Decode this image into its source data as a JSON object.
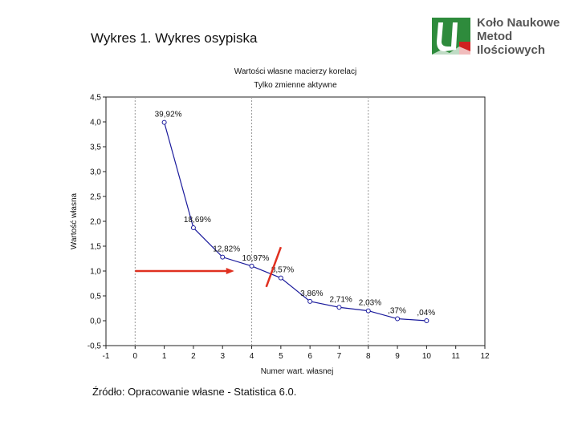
{
  "slide": {
    "title": "Wykres 1. Wykres osypiska",
    "source": "Źródło: Opracowanie własne - Statistica 6.0."
  },
  "logo": {
    "line1": "Koło Naukowe",
    "line2": "Metod",
    "line3": "Ilościowych",
    "color": "#2e8b3c"
  },
  "chart_data": {
    "type": "line",
    "title": "Wartości własne macierzy korelacj",
    "subtitle": "Tylko zmienne aktywne",
    "xlabel": "Numer wart. własnej",
    "ylabel": "Wartość własna",
    "xlim": [
      -1,
      12
    ],
    "ylim": [
      -0.5,
      4.5
    ],
    "x_ticks": [
      "-1",
      "0",
      "1",
      "2",
      "3",
      "4",
      "5",
      "6",
      "7",
      "8",
      "9",
      "10",
      "11",
      "12"
    ],
    "y_ticks": [
      "-0,5",
      "0,0",
      "0,5",
      "1,0",
      "1,5",
      "2,0",
      "2,5",
      "3,0",
      "3,5",
      "4,0",
      "4,5"
    ],
    "series": [
      {
        "x": [
          1,
          2,
          3,
          4,
          5,
          6,
          7,
          8,
          9,
          10
        ],
        "y": [
          3.99,
          1.87,
          1.28,
          1.1,
          0.86,
          0.39,
          0.27,
          0.2,
          0.04,
          0.0
        ],
        "labels": [
          "39,92%",
          "18,69%",
          "12,82%",
          "10,97%",
          "8,57%",
          "3,86%",
          "2,71%",
          "2,03%",
          ",37%",
          ",04%"
        ],
        "color": "#1a1a9c"
      }
    ],
    "grid_x": [
      0,
      4,
      8
    ],
    "arrow_color": "#e03020",
    "annotations": {
      "arrow_y": 1.0,
      "arrow_from_x": 0,
      "arrow_to_x": 3.4,
      "slash_from": [
        4.5,
        0.68
      ],
      "slash_to": [
        5.0,
        1.48
      ]
    }
  }
}
